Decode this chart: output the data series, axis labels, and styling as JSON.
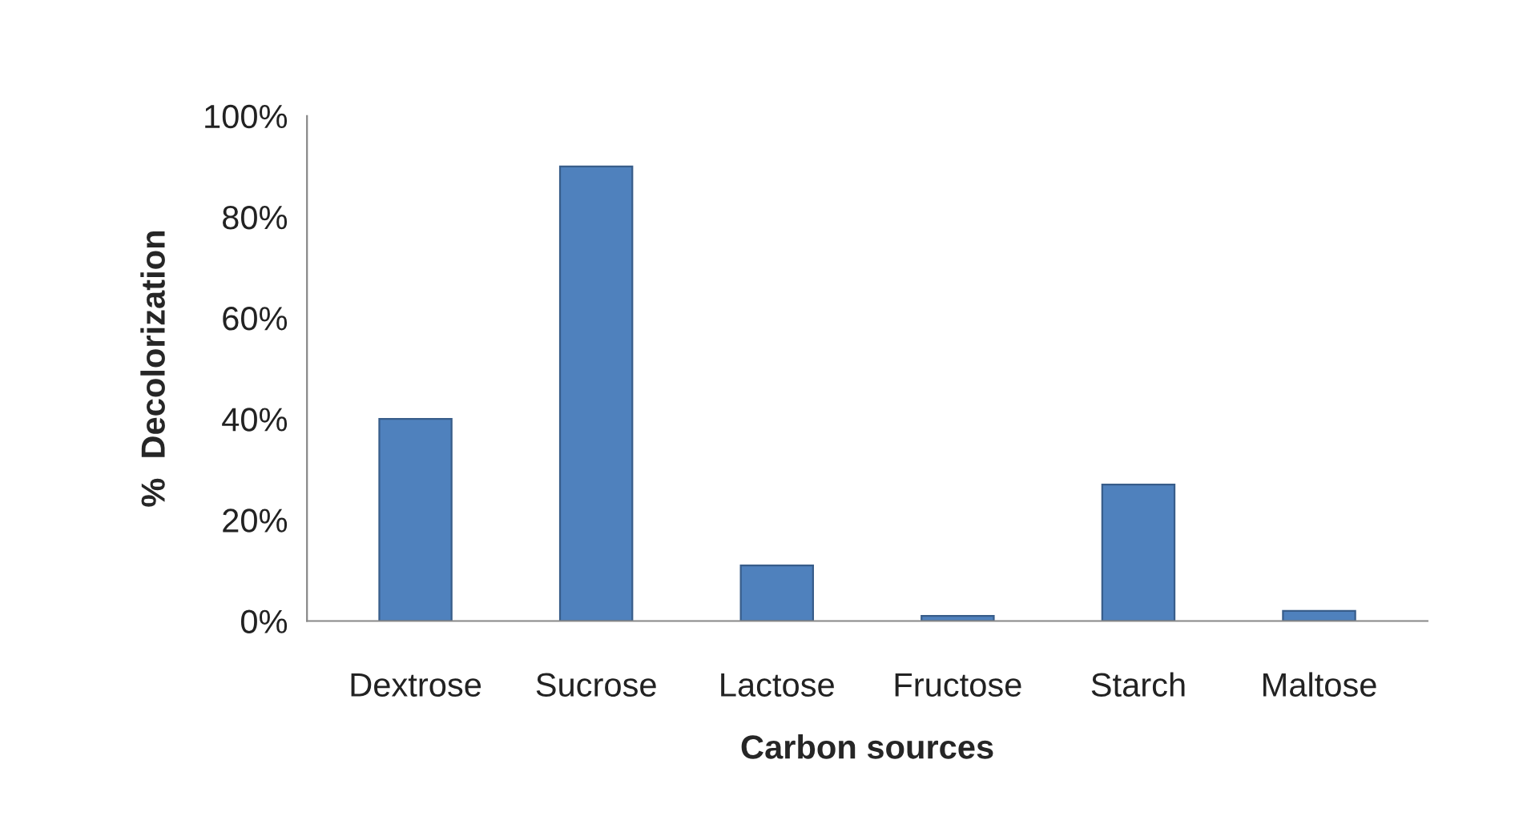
{
  "chart_data": {
    "type": "bar",
    "xlabel": "Carbon sources",
    "ylabel": "%  Decolorization",
    "categories": [
      "Dextrose",
      "Sucrose",
      "Lactose",
      "Fructose",
      "Starch",
      "Maltose"
    ],
    "values": [
      40,
      90,
      11,
      1,
      27,
      2
    ],
    "color": "#4f81bd",
    "ylim": [
      0,
      100
    ],
    "yticks": [
      {
        "value": 0,
        "label": "0%"
      },
      {
        "value": 20,
        "label": "20%"
      },
      {
        "value": 40,
        "label": "40%"
      },
      {
        "value": 60,
        "label": "60%"
      },
      {
        "value": 80,
        "label": "80%"
      },
      {
        "value": 100,
        "label": "100%"
      }
    ],
    "grid": false
  }
}
